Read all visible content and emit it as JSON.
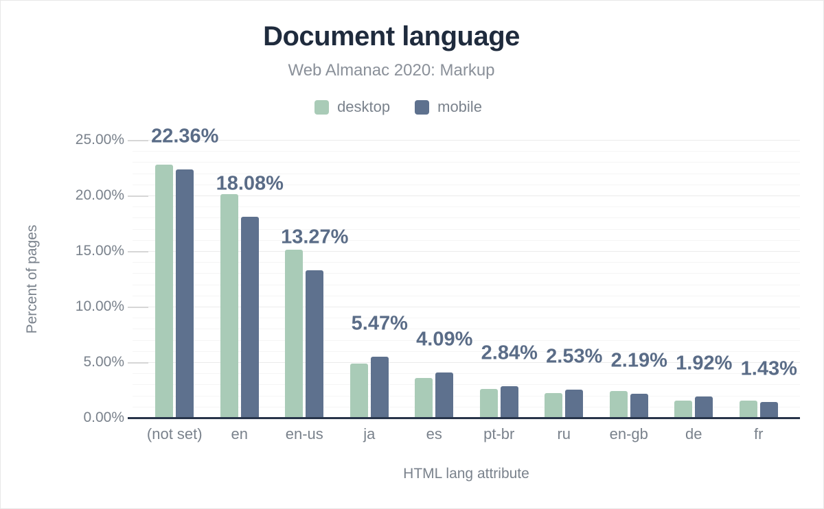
{
  "header": {
    "title": "Document language",
    "subtitle": "Web Almanac 2020: Markup"
  },
  "legend": [
    {
      "label": "desktop",
      "color": "#a9cbb7"
    },
    {
      "label": "mobile",
      "color": "#5e718e"
    }
  ],
  "axes": {
    "xlabel": "HTML lang attribute",
    "ylabel": "Percent of pages"
  },
  "colors": {
    "title": "#1f2b3d",
    "subtitle": "#8a9099",
    "axis_text": "#7a828c",
    "value_label": "#5a6c87",
    "baseline": "#273449",
    "desktop_bar": "#a9cbb7",
    "mobile_bar": "#5e718e"
  },
  "chart_data": {
    "type": "bar",
    "title": "Document language",
    "subtitle": "Web Almanac 2020: Markup",
    "xlabel": "HTML lang attribute",
    "ylabel": "Percent of pages",
    "categories": [
      "(not set)",
      "en",
      "en-us",
      "ja",
      "es",
      "pt-br",
      "ru",
      "en-gb",
      "de",
      "fr"
    ],
    "series": [
      {
        "name": "desktop",
        "color": "#a9cbb7",
        "values": [
          22.8,
          20.1,
          15.1,
          4.9,
          3.6,
          2.6,
          2.2,
          2.4,
          1.55,
          1.55
        ]
      },
      {
        "name": "mobile",
        "color": "#5e718e",
        "values": [
          22.36,
          18.08,
          13.27,
          5.47,
          4.09,
          2.84,
          2.53,
          2.19,
          1.92,
          1.43
        ]
      }
    ],
    "data_labels": {
      "series": "mobile",
      "values": [
        "22.36%",
        "18.08%",
        "13.27%",
        "5.47%",
        "4.09%",
        "2.84%",
        "2.53%",
        "2.19%",
        "1.92%",
        "1.43%"
      ]
    },
    "ylim": [
      0,
      25
    ],
    "ytick_values": [
      0,
      5,
      10,
      15,
      20,
      25
    ],
    "ytick_labels": [
      "0.00%",
      "5.00%",
      "10.00%",
      "15.00%",
      "20.00%",
      "25.00%"
    ],
    "grid": "horizontal, minor every 1%, major every 5%",
    "legend_position": "top"
  }
}
